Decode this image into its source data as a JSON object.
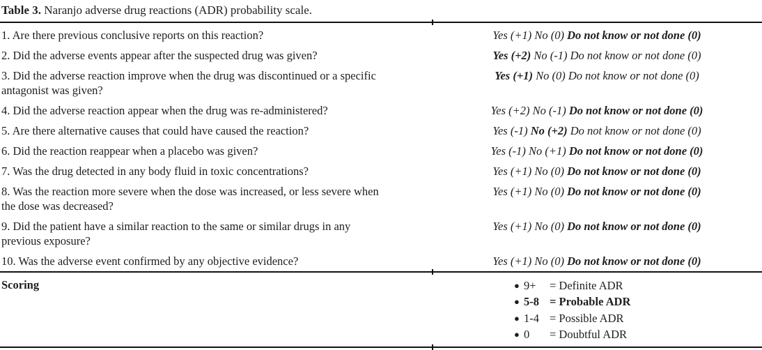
{
  "table": {
    "title_label": "Table 3.",
    "title_text": "Naranjo adverse drug reactions (ADR) probability scale.",
    "rows": [
      {
        "question": "1. Are there previous conclusive reports on this reaction?",
        "answer": [
          {
            "text": "Yes (+1)",
            "bold": false
          },
          {
            "text": "No (0)",
            "bold": false
          },
          {
            "text": "Do not know or not done (0)",
            "bold": true
          }
        ]
      },
      {
        "question": "2. Did the adverse events appear after the suspected drug was given?",
        "answer": [
          {
            "text": "Yes (+2)",
            "bold": true
          },
          {
            "text": "No (-1)",
            "bold": false
          },
          {
            "text": "Do not know or not done (0)",
            "bold": false
          }
        ]
      },
      {
        "question": "3. Did the adverse reaction improve when the drug was discontinued or a specific antagonist was given?",
        "answer": [
          {
            "text": "Yes (+1)",
            "bold": true
          },
          {
            "text": "No (0)",
            "bold": false
          },
          {
            "text": "Do not know or not done (0)",
            "bold": false
          }
        ]
      },
      {
        "question": "4. Did the adverse reaction appear when the drug was re-administered?",
        "answer": [
          {
            "text": "Yes (+2)",
            "bold": false
          },
          {
            "text": "No (-1)",
            "bold": false
          },
          {
            "text": "Do not know or not done (0)",
            "bold": true
          }
        ]
      },
      {
        "question": "5. Are there alternative causes that could have caused the reaction?",
        "answer": [
          {
            "text": "Yes (-1)",
            "bold": false
          },
          {
            "text": "No (+2)",
            "bold": true
          },
          {
            "text": "Do not know or not done (0)",
            "bold": false
          }
        ]
      },
      {
        "question": "6. Did the reaction reappear when a placebo was given?",
        "answer": [
          {
            "text": "Yes (-1)",
            "bold": false
          },
          {
            "text": "No (+1)",
            "bold": false
          },
          {
            "text": "Do not know or not done (0)",
            "bold": true
          }
        ]
      },
      {
        "question": "7. Was the drug detected in any body fluid in toxic concentrations?",
        "answer": [
          {
            "text": "Yes (+1)",
            "bold": false
          },
          {
            "text": "No (0)",
            "bold": false
          },
          {
            "text": "Do not know or not done (0)",
            "bold": true
          }
        ]
      },
      {
        "question": "8. Was the reaction more severe when the dose was increased, or less severe when the dose was decreased?",
        "answer": [
          {
            "text": "Yes (+1)",
            "bold": false
          },
          {
            "text": "No (0)",
            "bold": false
          },
          {
            "text": "Do not know or not done (0)",
            "bold": true
          }
        ]
      },
      {
        "question": "9. Did the patient have a similar reaction to the same or similar drugs in any previous exposure?",
        "answer": [
          {
            "text": "Yes (+1)",
            "bold": false
          },
          {
            "text": "No (0)",
            "bold": false
          },
          {
            "text": "Do not know or not done (0)",
            "bold": true
          }
        ]
      },
      {
        "question": "10. Was the adverse event confirmed by any objective evidence?",
        "answer": [
          {
            "text": "Yes (+1)",
            "bold": false
          },
          {
            "text": "No (0)",
            "bold": false
          },
          {
            "text": "Do not know or not done (0)",
            "bold": true
          }
        ]
      }
    ],
    "scoring": {
      "label": "Scoring",
      "bullet_glyph": "●",
      "items": [
        {
          "score": "9+",
          "label": "= Definite ADR",
          "bold": false
        },
        {
          "score": "5-8",
          "label": "= Probable ADR",
          "bold": true
        },
        {
          "score": "1-4",
          "label": "= Possible ADR",
          "bold": false
        },
        {
          "score": "0",
          "label": "= Doubtful ADR",
          "bold": false
        }
      ]
    }
  }
}
